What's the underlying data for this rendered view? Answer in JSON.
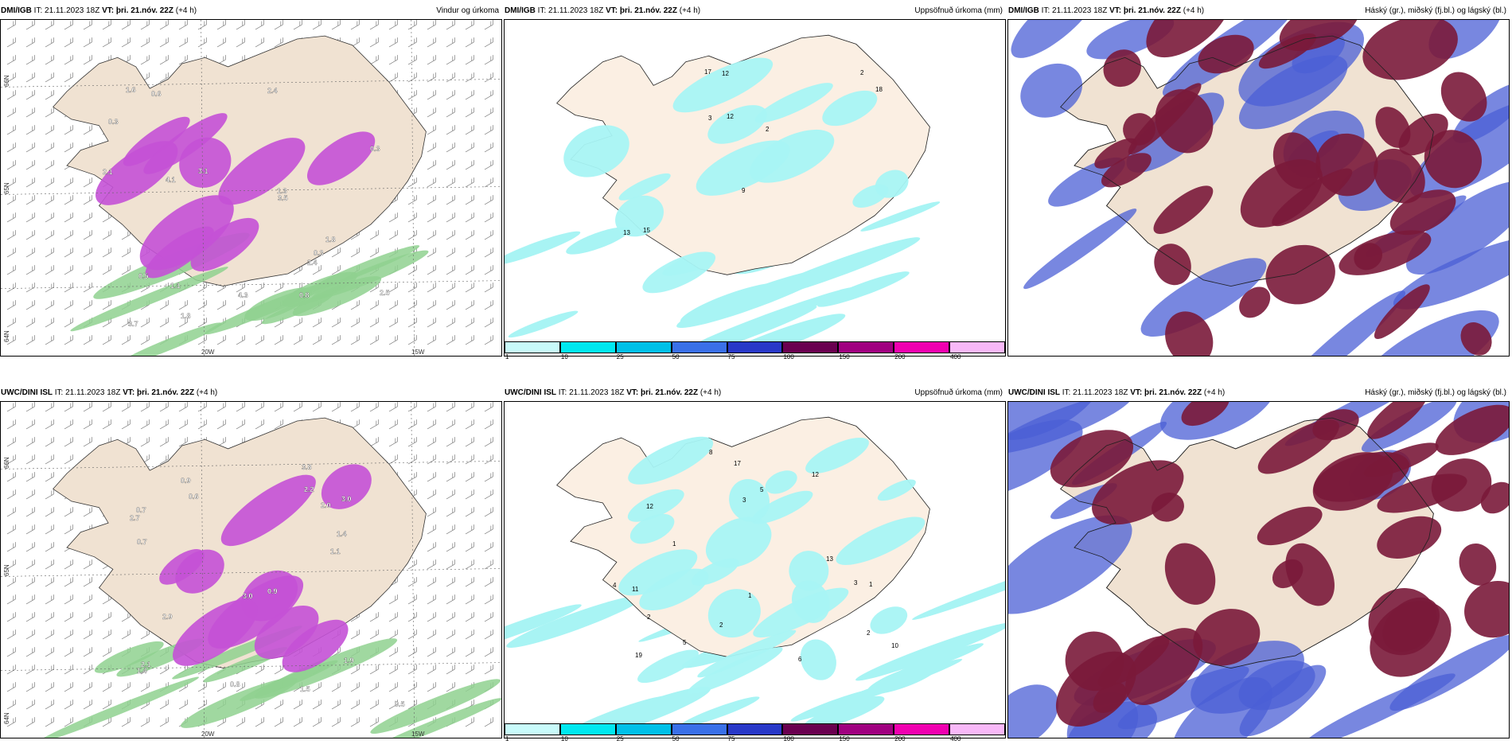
{
  "colors": {
    "land": "#f0e2d2",
    "purple_precip": "#c451d6",
    "green_precip": "#8fd18f",
    "dark_red_cloud": "#7a1a3a",
    "blue_cloud": "#4b5fd6",
    "cyan": "#a8f4f4"
  },
  "panels": [
    {
      "id": "dmi-wind",
      "model": "DMI/IGB",
      "it_label": "IT: 21.11.2023 18Z",
      "vt_label": "VT: þri. 21.nóv. 22Z",
      "lead": "(+4 h)",
      "field_title": "Vindur og úrkoma",
      "lat_labels": [
        "66N",
        "64N",
        "65N"
      ],
      "lon_labels": [
        "20W",
        "15W"
      ],
      "values": [
        "2.5",
        "1.8",
        "2.4",
        "3.1",
        "4.1",
        "2.4",
        "1.8",
        "2.1",
        "1.3",
        "3.7",
        "4.3",
        "3.5",
        "0.5",
        "0.3",
        "0.3",
        "0.3",
        "0.8",
        "1.1",
        "0.6",
        "1.6"
      ]
    },
    {
      "id": "dmi-accum",
      "model": "DMI/IGB",
      "it_label": "IT: 21.11.2023 18Z",
      "vt_label": "VT: þri. 21.nóv. 22Z",
      "lead": "(+4 h)",
      "field_title": "Uppsöfnuð úrkoma (mm)",
      "lat_labels": [],
      "lon_labels": [],
      "values": [
        "17",
        "13",
        "9",
        "18",
        "12",
        "12",
        "15",
        "2",
        "2",
        "3"
      ],
      "colorbar": [
        "1",
        "10",
        "25",
        "50",
        "75",
        "100",
        "150",
        "200",
        "400"
      ]
    },
    {
      "id": "dmi-cloud",
      "model": "DMI/IGB",
      "it_label": "IT: 21.11.2023 18Z",
      "vt_label": "VT: þri. 21.nóv. 22Z",
      "lead": "(+4 h)",
      "field_title": "Háský (gr.), miðský (fj.bl.) og lágský (bl.)",
      "lat_labels": [],
      "lon_labels": [],
      "values": []
    },
    {
      "id": "uwc-wind",
      "model": "UWC/DINI ISL",
      "it_label": "IT: 21.11.2023 18Z",
      "vt_label": "VT: þri. 21.nóv. 22Z",
      "lead": "(+4 h)",
      "field_title": "",
      "lat_labels": [
        "66N",
        "64N",
        "65N"
      ],
      "lon_labels": [
        "20W",
        "15W"
      ],
      "values": [
        "0.5",
        "0.9",
        "1.4",
        "1.5",
        "2.7",
        "3.0",
        "1.4",
        "1.9",
        "3.0",
        "2.2",
        "2.0",
        "2.1",
        "3.8",
        "2.9",
        "0.7",
        "0.8",
        "0.9",
        "1.1",
        "0.6",
        "0.7"
      ]
    },
    {
      "id": "uwc-accum",
      "model": "UWC/DINI ISL",
      "it_label": "IT: 21.11.2023 18Z",
      "vt_label": "VT: þri. 21.nóv. 22Z",
      "lead": "(+4 h)",
      "field_title": "Uppsöfnuð úrkoma (mm)",
      "lat_labels": [],
      "lon_labels": [],
      "values": [
        "1",
        "5",
        "6",
        "11",
        "3",
        "4",
        "12",
        "12",
        "13",
        "10",
        "17",
        "19",
        "2",
        "2",
        "3",
        "1",
        "1",
        "2",
        "8",
        "5"
      ],
      "colorbar": [
        "1",
        "10",
        "25",
        "50",
        "75",
        "100",
        "150",
        "200",
        "400"
      ]
    },
    {
      "id": "uwc-cloud",
      "model": "UWC/DINI ISL",
      "it_label": "IT: 21.11.2023 18Z",
      "vt_label": "VT: þri. 21.nóv. 22Z",
      "lead": "(+4 h)",
      "field_title": "Háský (gr.), miðský (fj.bl.) og lágský (bl.)",
      "lat_labels": [],
      "lon_labels": [],
      "values": []
    }
  ],
  "colorbar_colors": [
    "#c8fafa",
    "#00e8f0",
    "#00c0e8",
    "#3a70e8",
    "#2838c8",
    "#6a0050",
    "#a00080",
    "#f000b0",
    "#f8b8f8"
  ]
}
